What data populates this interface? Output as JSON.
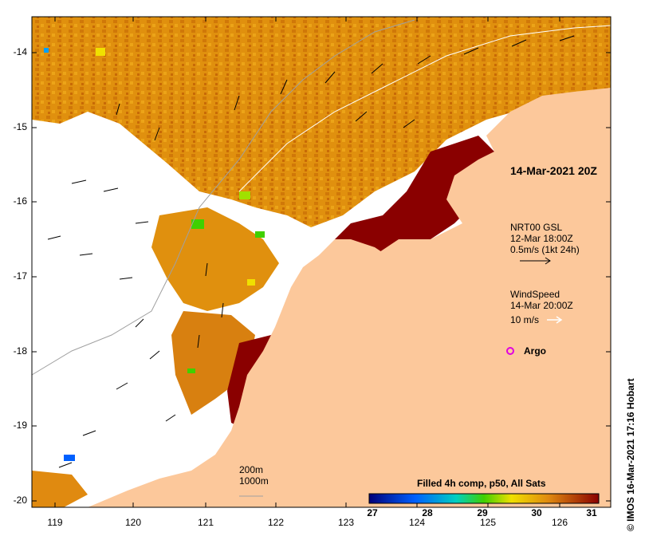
{
  "map": {
    "title": "14-Mar-2021 20Z",
    "current_source": "NRT00 GSL",
    "current_time": "12-Mar 18:00Z",
    "current_scale": "0.5m/s (1kt 24h)",
    "wind_label": "WindSpeed",
    "wind_time": "14-Mar 20:00Z",
    "wind_scale": "10 m/s",
    "argo_label": "Argo",
    "depth_label_1": "200m",
    "depth_label_2": "1000m",
    "credit": "© IMOS 16-Mar-2021 17:16 Hobart",
    "y_ticks": [
      "-14",
      "-15",
      "-16",
      "-17",
      "-18",
      "-19",
      "-20"
    ],
    "x_ticks": [
      "119",
      "120",
      "121",
      "122",
      "123",
      "124",
      "125",
      "126"
    ],
    "colorbar_title": "Filled 4h comp, p50, All Sats",
    "colorbar_ticks": [
      "27",
      "28",
      "29",
      "30",
      "31"
    ],
    "colors": {
      "land": "#fcc89b",
      "warm": "#e08a10",
      "hot": "#8a0000",
      "argo": "#e000e0"
    }
  }
}
